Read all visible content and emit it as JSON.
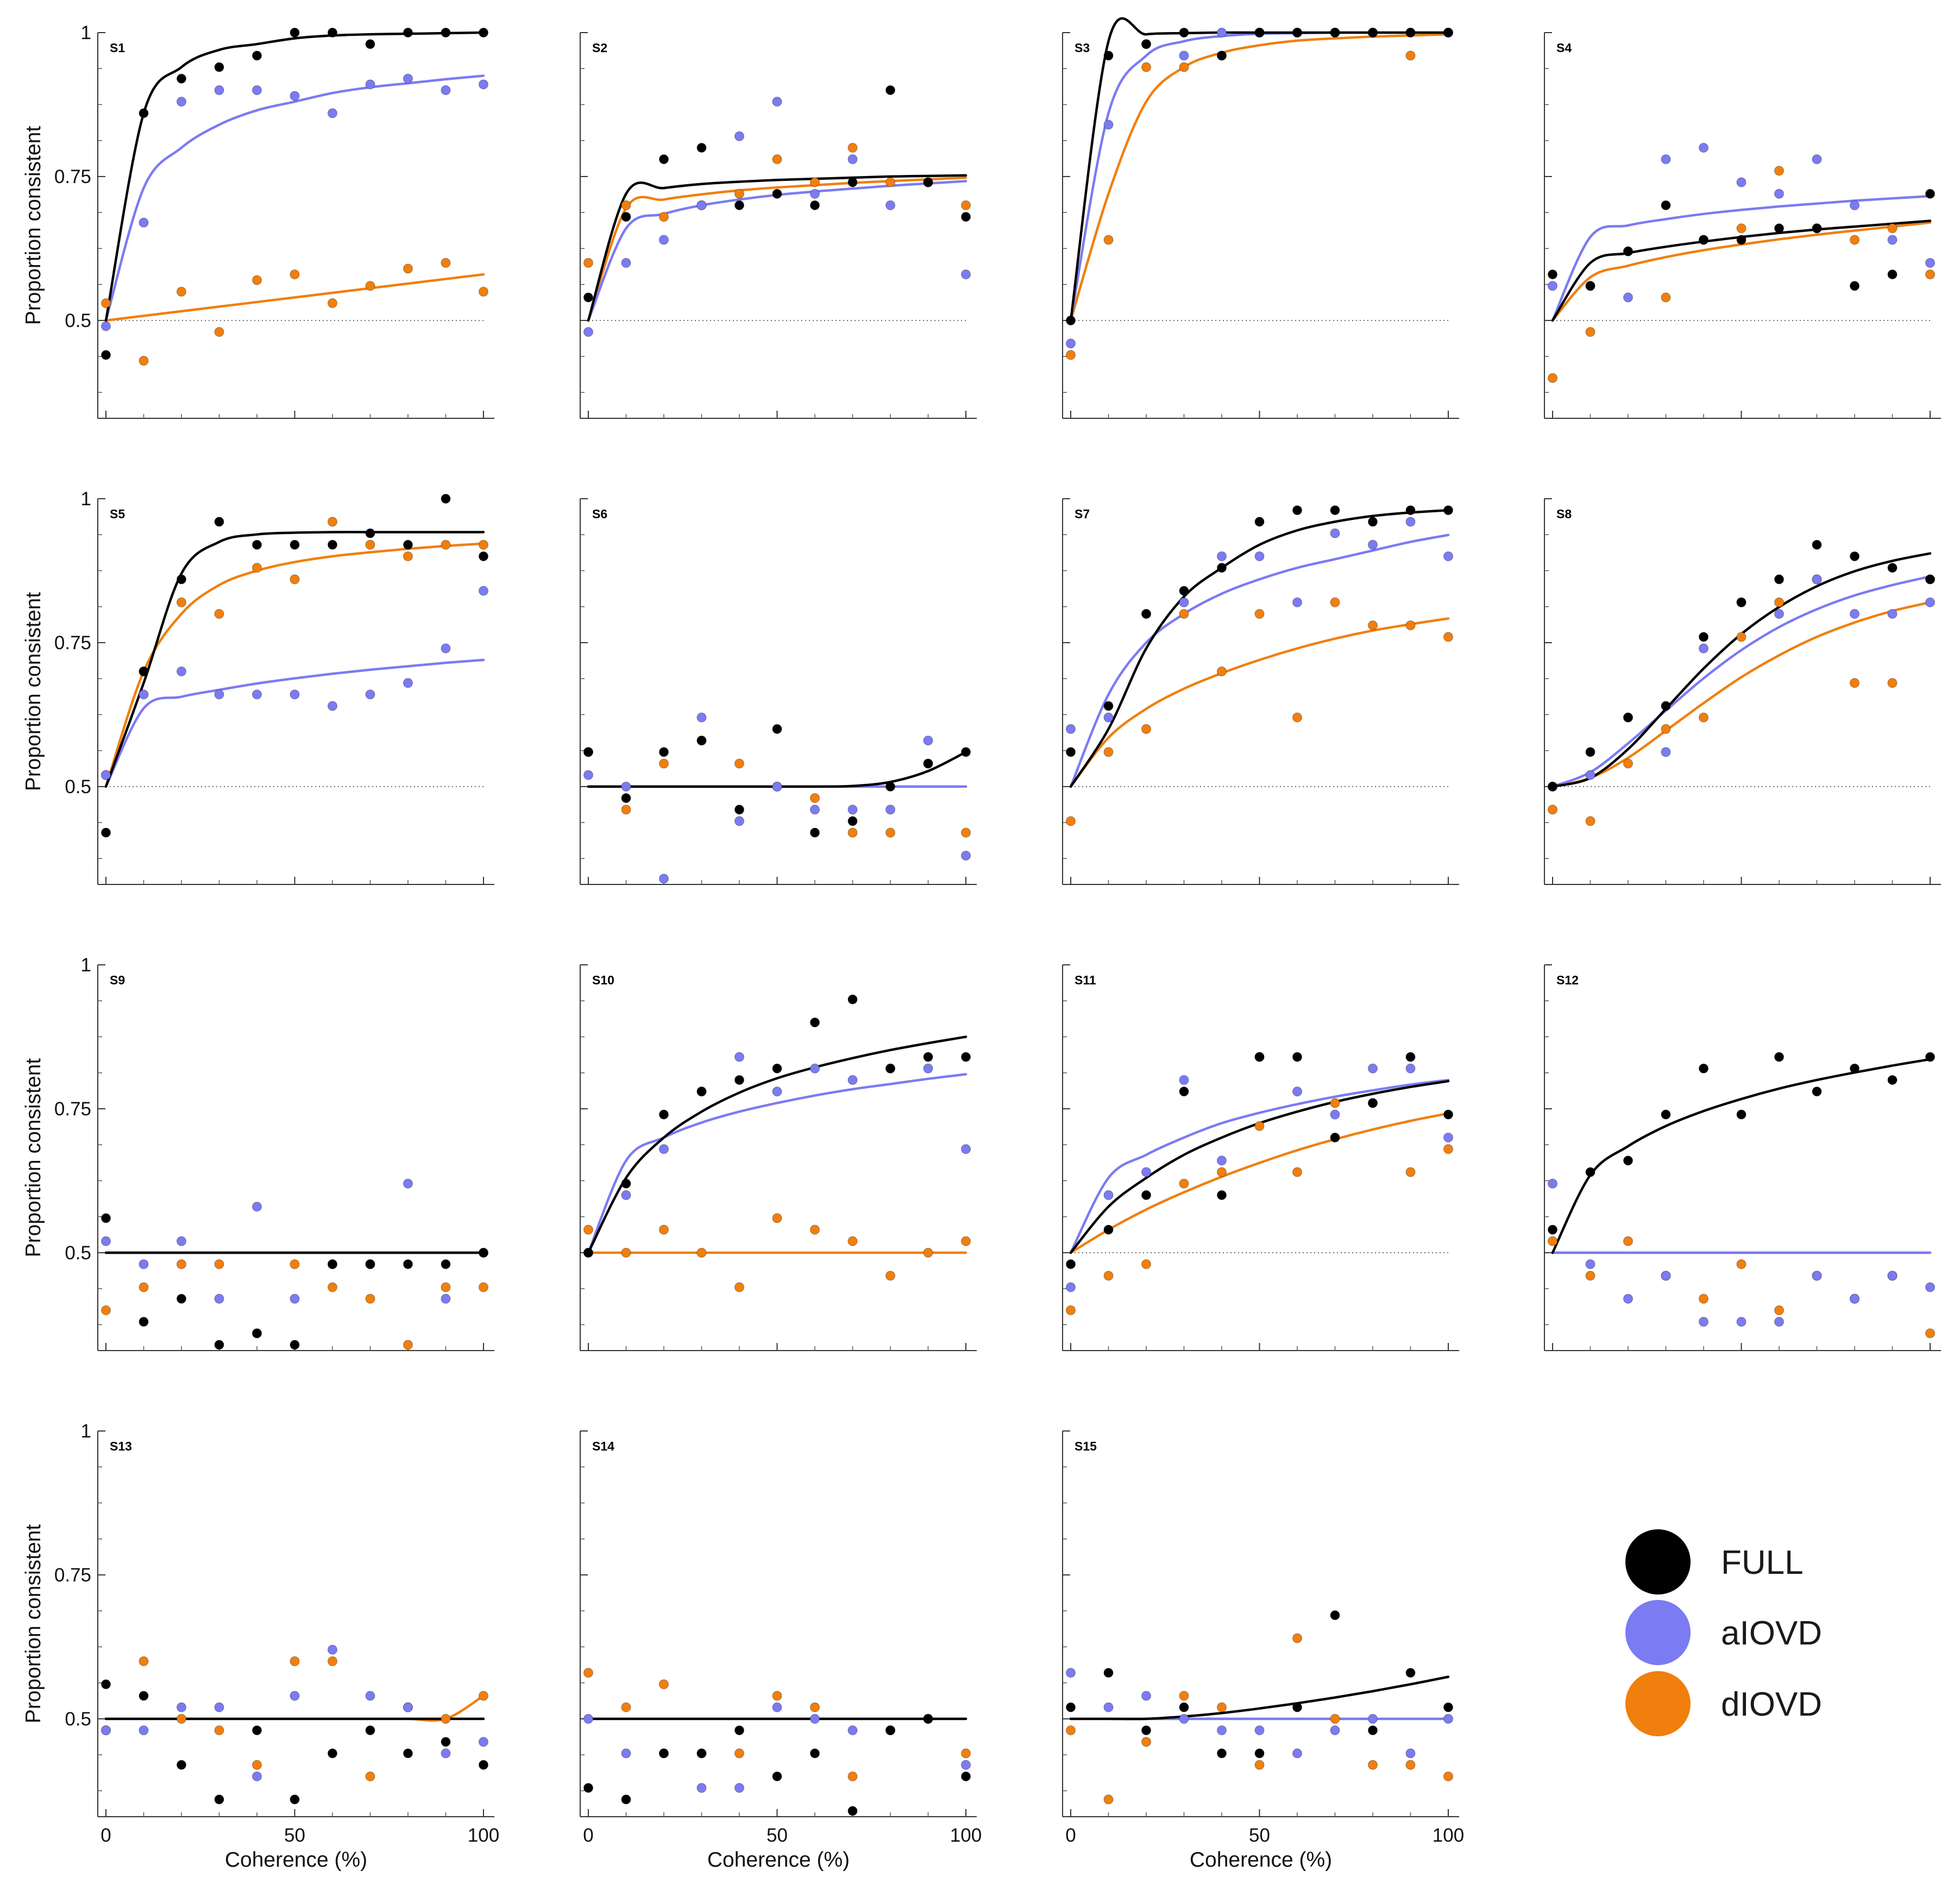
{
  "chart_data": {
    "type": "scatter",
    "xlabel": "Coherence (%)",
    "ylabel": "Proportion consistent",
    "xlim": [
      0,
      100
    ],
    "ylim": [
      0.33,
      1.0
    ],
    "x_ticks": [
      "0",
      "50",
      "100"
    ],
    "y_ticks": [
      "0.5",
      "0.75",
      "1"
    ],
    "x_values": [
      0,
      10,
      20,
      30,
      40,
      50,
      60,
      70,
      80,
      90,
      100
    ],
    "chance_level": 0.5,
    "legend": [
      {
        "key": "full",
        "label": "FULL",
        "color": "#000000"
      },
      {
        "key": "aiovd",
        "label": "aIOVD",
        "color": "#7b7bf2"
      },
      {
        "key": "diovd",
        "label": "dIOVD",
        "color": "#f07f0e"
      }
    ],
    "panels": [
      {
        "label": "S1",
        "full": [
          0.44,
          0.86,
          0.92,
          0.94,
          0.96,
          1.0,
          1.0,
          0.98,
          1.0,
          1.0,
          1.0
        ],
        "aiovd": [
          0.49,
          0.67,
          0.88,
          0.9,
          0.9,
          0.89,
          0.86,
          0.91,
          0.92,
          0.9,
          0.91
        ],
        "diovd": [
          0.53,
          0.43,
          0.55,
          0.48,
          0.57,
          0.58,
          0.53,
          0.56,
          0.59,
          0.6,
          0.55
        ],
        "fit_full": [
          0.5,
          0.86,
          0.94,
          0.97,
          0.98,
          0.99,
          0.995,
          0.997,
          0.998,
          0.999,
          1.0
        ],
        "fit_aiovd": [
          0.5,
          0.73,
          0.8,
          0.84,
          0.865,
          0.88,
          0.895,
          0.905,
          0.912,
          0.919,
          0.925
        ],
        "fit_diovd": [
          0.5,
          0.508,
          0.516,
          0.524,
          0.532,
          0.54,
          0.548,
          0.556,
          0.564,
          0.572,
          0.58
        ]
      },
      {
        "label": "S2",
        "full": [
          0.54,
          0.68,
          0.78,
          0.8,
          0.7,
          0.72,
          0.7,
          0.74,
          0.9,
          0.74,
          0.68
        ],
        "aiovd": [
          0.48,
          0.6,
          0.64,
          0.7,
          0.82,
          0.88,
          0.72,
          0.78,
          0.7,
          0.74,
          0.58
        ],
        "diovd": [
          0.6,
          0.7,
          0.68,
          0.7,
          0.72,
          0.78,
          0.74,
          0.8,
          0.74,
          0.74,
          0.7
        ],
        "fit_full": [
          0.5,
          0.72,
          0.73,
          0.737,
          0.741,
          0.744,
          0.746,
          0.748,
          0.75,
          0.751,
          0.752
        ],
        "fit_aiovd": [
          0.5,
          0.66,
          0.685,
          0.7,
          0.71,
          0.718,
          0.724,
          0.729,
          0.734,
          0.738,
          0.742
        ],
        "fit_diovd": [
          0.5,
          0.695,
          0.71,
          0.719,
          0.726,
          0.731,
          0.735,
          0.739,
          0.742,
          0.745,
          0.748
        ]
      },
      {
        "label": "S3",
        "full": [
          0.5,
          0.96,
          0.98,
          1.0,
          0.96,
          1.0,
          1.0,
          1.0,
          1.0,
          1.0,
          1.0
        ],
        "aiovd": [
          0.46,
          0.84,
          0.98,
          0.96,
          1.0,
          1.0,
          1.0,
          1.0,
          1.0,
          1.0,
          1.0
        ],
        "diovd": [
          0.44,
          0.64,
          0.94,
          0.94,
          0.96,
          1.0,
          1.0,
          1.0,
          1.0,
          0.96,
          1.0
        ],
        "fit_full": [
          0.5,
          0.985,
          0.997,
          0.999,
          1.0,
          1.0,
          1.0,
          1.0,
          1.0,
          1.0,
          1.0
        ],
        "fit_aiovd": [
          0.5,
          0.86,
          0.96,
          0.985,
          0.994,
          0.998,
          0.999,
          1.0,
          1.0,
          1.0,
          1.0
        ],
        "fit_diovd": [
          0.5,
          0.72,
          0.88,
          0.94,
          0.965,
          0.978,
          0.986,
          0.99,
          0.993,
          0.995,
          0.997
        ]
      },
      {
        "label": "S4",
        "full": [
          0.58,
          0.56,
          0.62,
          0.7,
          0.64,
          0.64,
          0.66,
          0.66,
          0.56,
          0.58,
          0.72
        ],
        "aiovd": [
          0.56,
          0.56,
          0.54,
          0.78,
          0.8,
          0.74,
          0.72,
          0.78,
          0.7,
          0.64,
          0.6
        ],
        "diovd": [
          0.4,
          0.48,
          0.62,
          0.54,
          0.64,
          0.66,
          0.76,
          0.66,
          0.64,
          0.66,
          0.58
        ],
        "fit_full": [
          0.5,
          0.6,
          0.617,
          0.628,
          0.637,
          0.645,
          0.652,
          0.658,
          0.663,
          0.668,
          0.673
        ],
        "fit_aiovd": [
          0.5,
          0.645,
          0.665,
          0.676,
          0.685,
          0.692,
          0.698,
          0.703,
          0.708,
          0.712,
          0.716
        ],
        "fit_diovd": [
          0.5,
          0.575,
          0.595,
          0.61,
          0.622,
          0.632,
          0.641,
          0.649,
          0.656,
          0.663,
          0.67
        ]
      },
      {
        "label": "S5",
        "full": [
          0.42,
          0.7,
          0.86,
          0.96,
          0.92,
          0.92,
          0.92,
          0.94,
          0.92,
          1.0,
          0.9
        ],
        "aiovd": [
          0.52,
          0.66,
          0.7,
          0.66,
          0.66,
          0.66,
          0.64,
          0.66,
          0.68,
          0.74,
          0.84
        ],
        "diovd": [
          0.52,
          0.7,
          0.82,
          0.8,
          0.88,
          0.86,
          0.96,
          0.92,
          0.9,
          0.92,
          0.92
        ],
        "fit_full": [
          0.5,
          0.68,
          0.87,
          0.925,
          0.938,
          0.941,
          0.942,
          0.942,
          0.942,
          0.942,
          0.942
        ],
        "fit_aiovd": [
          0.5,
          0.636,
          0.656,
          0.668,
          0.679,
          0.688,
          0.696,
          0.703,
          0.709,
          0.715,
          0.72
        ],
        "fit_diovd": [
          0.5,
          0.7,
          0.8,
          0.85,
          0.875,
          0.89,
          0.9,
          0.907,
          0.913,
          0.918,
          0.922
        ]
      },
      {
        "label": "S6",
        "full": [
          0.56,
          0.48,
          0.56,
          0.58,
          0.46,
          0.6,
          0.42,
          0.44,
          0.5,
          0.54,
          0.56
        ],
        "aiovd": [
          0.52,
          0.5,
          0.34,
          0.62,
          0.44,
          0.5,
          0.46,
          0.46,
          0.46,
          0.58,
          0.38
        ],
        "diovd": [
          0.56,
          0.46,
          0.54,
          0.58,
          0.54,
          0.5,
          0.48,
          0.42,
          0.42,
          0.54,
          0.42
        ],
        "fit_full": [
          0.5,
          0.5,
          0.5,
          0.5,
          0.5,
          0.5,
          0.5,
          0.501,
          0.508,
          0.527,
          0.56
        ],
        "fit_aiovd": [
          0.5,
          0.5,
          0.5,
          0.5,
          0.5,
          0.5,
          0.5,
          0.5,
          0.5,
          0.5,
          0.5
        ],
        "fit_diovd": [
          0.5,
          0.5,
          0.5,
          0.5,
          0.5,
          0.5,
          0.5,
          0.5,
          0.5,
          0.5,
          0.5
        ]
      },
      {
        "label": "S7",
        "full": [
          0.56,
          0.64,
          0.8,
          0.84,
          0.88,
          0.96,
          0.98,
          0.98,
          0.96,
          0.98,
          0.98
        ],
        "aiovd": [
          0.6,
          0.62,
          0.8,
          0.82,
          0.9,
          0.9,
          0.82,
          0.94,
          0.92,
          0.96,
          0.9
        ],
        "diovd": [
          0.44,
          0.56,
          0.6,
          0.8,
          0.7,
          0.8,
          0.62,
          0.82,
          0.78,
          0.78,
          0.76
        ],
        "fit_full": [
          0.5,
          0.6,
          0.74,
          0.83,
          0.88,
          0.92,
          0.945,
          0.96,
          0.97,
          0.976,
          0.98
        ],
        "fit_aiovd": [
          0.5,
          0.66,
          0.75,
          0.8,
          0.835,
          0.86,
          0.88,
          0.895,
          0.91,
          0.925,
          0.937
        ],
        "fit_diovd": [
          0.5,
          0.585,
          0.635,
          0.67,
          0.697,
          0.72,
          0.74,
          0.757,
          0.771,
          0.782,
          0.792
        ]
      },
      {
        "label": "S8",
        "full": [
          0.5,
          0.56,
          0.62,
          0.64,
          0.76,
          0.82,
          0.86,
          0.92,
          0.9,
          0.88,
          0.86
        ],
        "aiovd": [
          0.5,
          0.52,
          0.62,
          0.56,
          0.74,
          0.82,
          0.8,
          0.86,
          0.8,
          0.8,
          0.82
        ],
        "diovd": [
          0.46,
          0.44,
          0.54,
          0.6,
          0.62,
          0.76,
          0.82,
          0.86,
          0.68,
          0.68,
          0.86
        ],
        "fit_full": [
          0.5,
          0.515,
          0.565,
          0.635,
          0.705,
          0.765,
          0.812,
          0.848,
          0.874,
          0.892,
          0.905
        ],
        "fit_aiovd": [
          0.5,
          0.525,
          0.575,
          0.632,
          0.688,
          0.737,
          0.777,
          0.808,
          0.832,
          0.85,
          0.865
        ],
        "fit_diovd": [
          0.5,
          0.515,
          0.55,
          0.597,
          0.645,
          0.69,
          0.728,
          0.76,
          0.785,
          0.805,
          0.82
        ]
      },
      {
        "label": "S9",
        "full": [
          0.56,
          0.38,
          0.42,
          0.34,
          0.36,
          0.34,
          0.48,
          0.48,
          0.48,
          0.48,
          0.5
        ],
        "aiovd": [
          0.52,
          0.48,
          0.52,
          0.42,
          0.58,
          0.42,
          0.48,
          0.48,
          0.62,
          0.42,
          0.5
        ],
        "diovd": [
          0.4,
          0.44,
          0.48,
          0.48,
          0.36,
          0.48,
          0.44,
          0.42,
          0.34,
          0.44,
          0.44
        ],
        "fit_full": [
          0.5,
          0.5,
          0.5,
          0.5,
          0.5,
          0.5,
          0.5,
          0.5,
          0.5,
          0.5,
          0.5
        ],
        "fit_aiovd": [
          0.5,
          0.5,
          0.5,
          0.5,
          0.5,
          0.5,
          0.5,
          0.5,
          0.5,
          0.5,
          0.5
        ],
        "fit_diovd": [
          0.5,
          0.5,
          0.5,
          0.5,
          0.5,
          0.5,
          0.5,
          0.5,
          0.5,
          0.5,
          0.5
        ]
      },
      {
        "label": "S10",
        "full": [
          0.5,
          0.62,
          0.74,
          0.78,
          0.8,
          0.82,
          0.9,
          0.94,
          0.82,
          0.84,
          0.84
        ],
        "aiovd": [
          0.5,
          0.6,
          0.68,
          0.78,
          0.84,
          0.78,
          0.82,
          0.8,
          0.82,
          0.82,
          0.68
        ],
        "diovd": [
          0.54,
          0.5,
          0.54,
          0.5,
          0.44,
          0.56,
          0.54,
          0.52,
          0.46,
          0.5,
          0.52
        ],
        "fit_full": [
          0.5,
          0.63,
          0.7,
          0.745,
          0.778,
          0.803,
          0.822,
          0.838,
          0.852,
          0.864,
          0.875
        ],
        "fit_aiovd": [
          0.5,
          0.66,
          0.7,
          0.726,
          0.745,
          0.76,
          0.773,
          0.784,
          0.793,
          0.802,
          0.81
        ],
        "fit_diovd": [
          0.5,
          0.5,
          0.5,
          0.5,
          0.5,
          0.5,
          0.5,
          0.5,
          0.5,
          0.5,
          0.5
        ]
      },
      {
        "label": "S11",
        "full": [
          0.48,
          0.54,
          0.6,
          0.78,
          0.6,
          0.84,
          0.84,
          0.7,
          0.76,
          0.84,
          0.74
        ],
        "aiovd": [
          0.44,
          0.6,
          0.64,
          0.8,
          0.66,
          0.84,
          0.78,
          0.74,
          0.82,
          0.82,
          0.7
        ],
        "diovd": [
          0.4,
          0.46,
          0.48,
          0.62,
          0.64,
          0.72,
          0.64,
          0.76,
          0.76,
          0.64,
          0.68
        ],
        "fit_full": [
          0.5,
          0.58,
          0.63,
          0.67,
          0.7,
          0.725,
          0.745,
          0.762,
          0.776,
          0.788,
          0.798
        ],
        "fit_aiovd": [
          0.5,
          0.63,
          0.67,
          0.7,
          0.725,
          0.743,
          0.758,
          0.771,
          0.782,
          0.792,
          0.8
        ],
        "fit_diovd": [
          0.5,
          0.54,
          0.575,
          0.605,
          0.632,
          0.656,
          0.678,
          0.697,
          0.714,
          0.729,
          0.742
        ]
      },
      {
        "label": "S12",
        "full": [
          0.54,
          0.64,
          0.66,
          0.74,
          0.82,
          0.74,
          0.84,
          0.78,
          0.82,
          0.8,
          0.84
        ],
        "aiovd": [
          0.62,
          0.48,
          0.42,
          0.46,
          0.38,
          0.38,
          0.38,
          0.46,
          0.42,
          0.46,
          0.44
        ],
        "diovd": [
          0.52,
          0.46,
          0.52,
          0.46,
          0.42,
          0.48,
          0.4,
          0.46,
          0.42,
          0.46,
          0.36
        ],
        "fit_full": [
          0.5,
          0.635,
          0.685,
          0.72,
          0.746,
          0.767,
          0.785,
          0.8,
          0.813,
          0.825,
          0.836
        ],
        "fit_aiovd": [
          0.5,
          0.5,
          0.5,
          0.5,
          0.5,
          0.5,
          0.5,
          0.5,
          0.5,
          0.5,
          0.5
        ],
        "fit_diovd": [
          0.5,
          0.5,
          0.5,
          0.5,
          0.5,
          0.5,
          0.5,
          0.5,
          0.5,
          0.5,
          0.5
        ]
      },
      {
        "label": "S13",
        "full": [
          0.56,
          0.54,
          0.42,
          0.36,
          0.48,
          0.36,
          0.44,
          0.48,
          0.44,
          0.46,
          0.42
        ],
        "aiovd": [
          0.48,
          0.48,
          0.52,
          0.52,
          0.4,
          0.54,
          0.62,
          0.54,
          0.52,
          0.44,
          0.46
        ],
        "diovd": [
          0.48,
          0.6,
          0.5,
          0.48,
          0.42,
          0.6,
          0.6,
          0.4,
          0.52,
          0.5,
          0.54
        ],
        "fit_full": [
          0.5,
          0.5,
          0.5,
          0.5,
          0.5,
          0.5,
          0.5,
          0.5,
          0.5,
          0.5,
          0.5
        ],
        "fit_aiovd": [
          0.5,
          0.5,
          0.5,
          0.5,
          0.5,
          0.5,
          0.5,
          0.5,
          0.5,
          0.5,
          0.5
        ],
        "fit_diovd": [
          0.5,
          0.5,
          0.5,
          0.5,
          0.5,
          0.5,
          0.5,
          0.5,
          0.5,
          0.5,
          0.54
        ]
      },
      {
        "label": "S14",
        "full": [
          0.38,
          0.36,
          0.44,
          0.44,
          0.48,
          0.4,
          0.44,
          0.34,
          0.48,
          0.5,
          0.4
        ],
        "aiovd": [
          0.5,
          0.44,
          0.44,
          0.38,
          0.38,
          0.52,
          0.5,
          0.48,
          0.48,
          0.5,
          0.42
        ],
        "diovd": [
          0.58,
          0.52,
          0.56,
          0.44,
          0.44,
          0.54,
          0.52,
          0.4,
          0.48,
          0.5,
          0.44
        ],
        "fit_full": [
          0.5,
          0.5,
          0.5,
          0.5,
          0.5,
          0.5,
          0.5,
          0.5,
          0.5,
          0.5,
          0.5
        ],
        "fit_aiovd": [
          0.5,
          0.5,
          0.5,
          0.5,
          0.5,
          0.5,
          0.5,
          0.5,
          0.5,
          0.5,
          0.5
        ],
        "fit_diovd": [
          0.5,
          0.5,
          0.5,
          0.5,
          0.5,
          0.5,
          0.5,
          0.5,
          0.5,
          0.5,
          0.5
        ]
      },
      {
        "label": "S15",
        "full": [
          0.52,
          0.58,
          0.48,
          0.52,
          0.44,
          0.44,
          0.52,
          0.68,
          0.48,
          0.58,
          0.52
        ],
        "aiovd": [
          0.58,
          0.52,
          0.54,
          0.5,
          0.48,
          0.48,
          0.44,
          0.48,
          0.5,
          0.44,
          0.5
        ],
        "diovd": [
          0.48,
          0.36,
          0.46,
          0.54,
          0.52,
          0.42,
          0.64,
          0.5,
          0.42,
          0.42,
          0.4
        ],
        "fit_full": [
          0.5,
          0.5,
          0.5,
          0.504,
          0.51,
          0.518,
          0.527,
          0.537,
          0.548,
          0.56,
          0.573
        ],
        "fit_aiovd": [
          0.5,
          0.5,
          0.5,
          0.5,
          0.5,
          0.5,
          0.5,
          0.5,
          0.5,
          0.5,
          0.5
        ],
        "fit_diovd": [
          0.5,
          0.5,
          0.5,
          0.5,
          0.5,
          0.5,
          0.5,
          0.5,
          0.5,
          0.5,
          0.5
        ]
      }
    ]
  }
}
